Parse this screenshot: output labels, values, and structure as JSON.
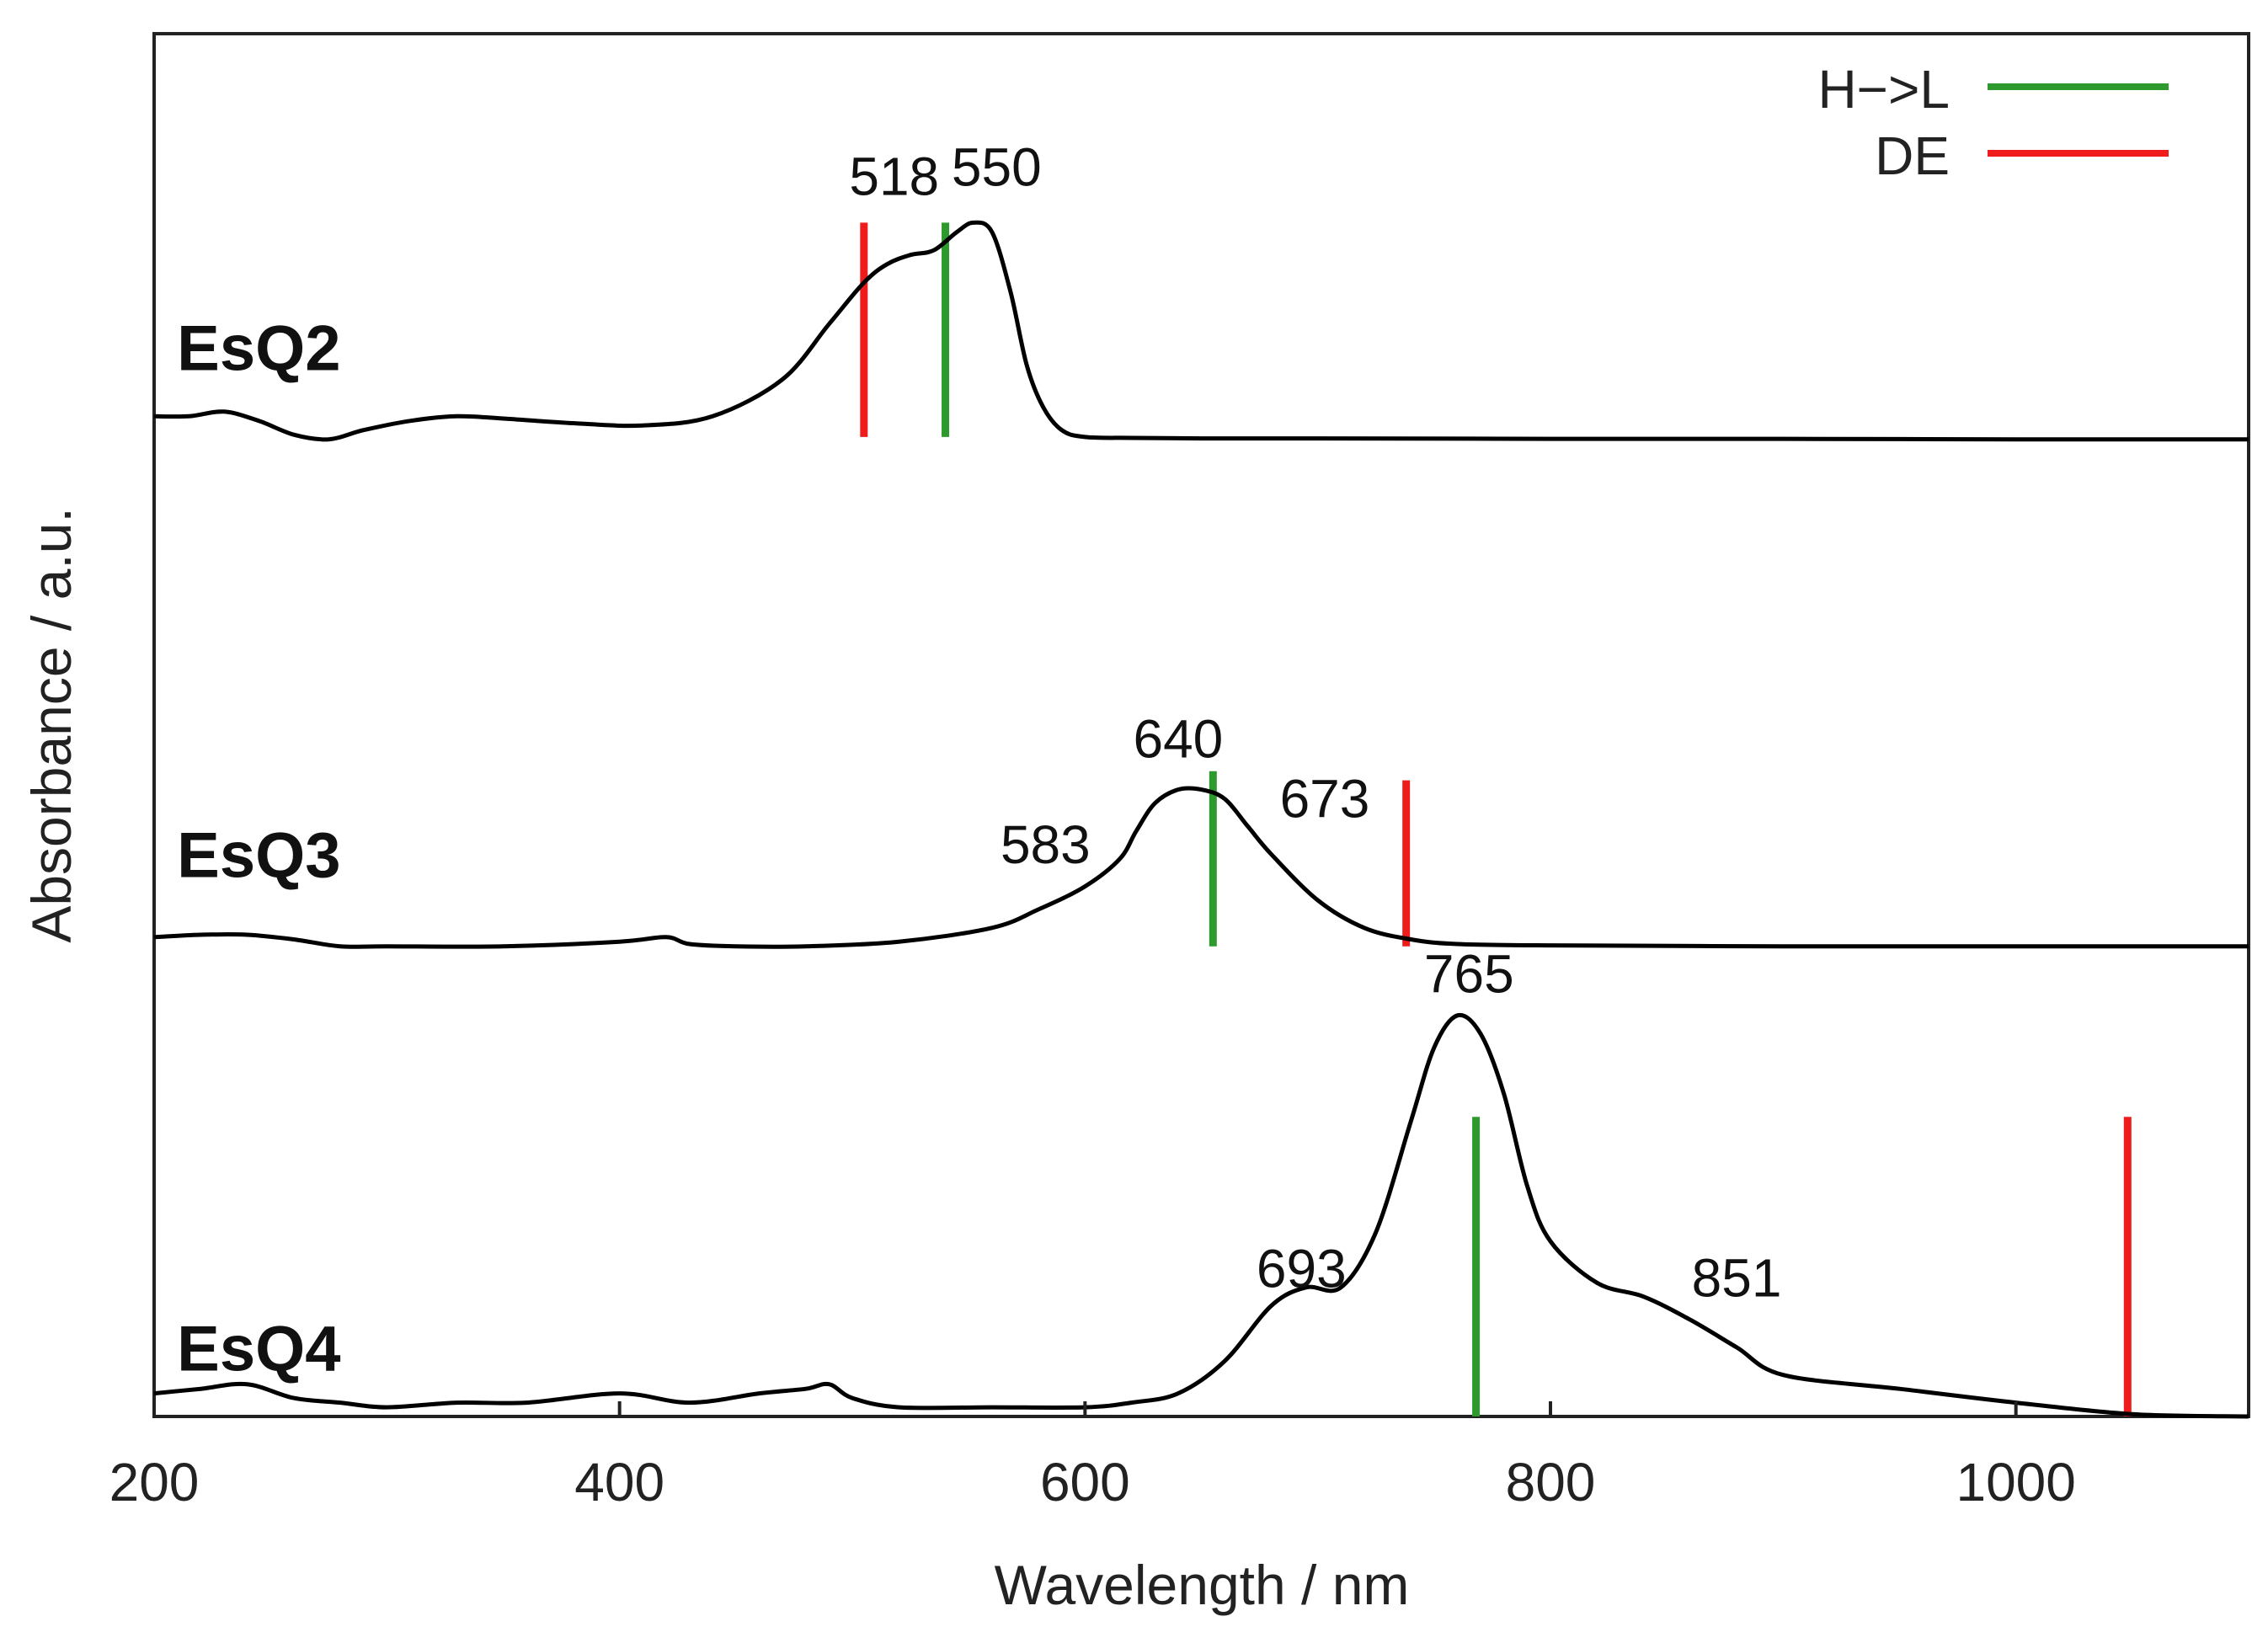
{
  "chart_data": {
    "type": "line",
    "title": "",
    "xlabel": "Wavelength / nm",
    "ylabel": "Absorbance / a.u.",
    "xlim": [
      200,
      1100
    ],
    "ylim": [
      0,
      3.0
    ],
    "xticks": [
      200,
      400,
      600,
      800,
      1000
    ],
    "legend": {
      "placement": "top-right",
      "entries": [
        {
          "label": "H−>L",
          "color": "#2e9a2e"
        },
        {
          "label": "DE",
          "color": "#ee1c1c"
        }
      ]
    },
    "series": [
      {
        "name": "EsQ2",
        "color": "#000000",
        "x": [
          200,
          215,
          230,
          245,
          260,
          275,
          290,
          310,
          330,
          350,
          380,
          410,
          440,
          470,
          490,
          505,
          515,
          525,
          535,
          545,
          552,
          560,
          568,
          575,
          582,
          590,
          600,
          620,
          650,
          700,
          800,
          900,
          1000,
          1100
        ],
        "y": [
          2.17,
          2.17,
          2.18,
          2.16,
          2.13,
          2.12,
          2.14,
          2.16,
          2.17,
          2.165,
          2.155,
          2.15,
          2.17,
          2.25,
          2.37,
          2.46,
          2.5,
          2.52,
          2.53,
          2.57,
          2.59,
          2.57,
          2.44,
          2.28,
          2.19,
          2.14,
          2.125,
          2.123,
          2.122,
          2.122,
          2.121,
          2.121,
          2.12,
          2.12
        ],
        "peaks": [
          518,
          550
        ],
        "transitions": {
          "H->L": 540,
          "DE": 505
        }
      },
      {
        "name": "EsQ3",
        "color": "#000000",
        "x": [
          200,
          220,
          240,
          260,
          280,
          300,
          350,
          400,
          420,
          430,
          450,
          480,
          520,
          560,
          580,
          600,
          615,
          622,
          630,
          640,
          650,
          660,
          670,
          680,
          700,
          720,
          740,
          760,
          800,
          900,
          1000,
          1100
        ],
        "y": [
          1.04,
          1.045,
          1.045,
          1.035,
          1.02,
          1.02,
          1.02,
          1.03,
          1.04,
          1.025,
          1.02,
          1.02,
          1.03,
          1.06,
          1.1,
          1.15,
          1.21,
          1.27,
          1.33,
          1.36,
          1.36,
          1.34,
          1.28,
          1.22,
          1.12,
          1.06,
          1.035,
          1.025,
          1.022,
          1.02,
          1.02,
          1.02
        ],
        "peaks": [
          583,
          640,
          673
        ],
        "transitions": {
          "H->L": 655,
          "DE": 738
        }
      },
      {
        "name": "EsQ4",
        "color": "#000000",
        "x": [
          200,
          220,
          240,
          260,
          280,
          300,
          330,
          360,
          400,
          430,
          460,
          480,
          490,
          500,
          520,
          560,
          600,
          620,
          640,
          660,
          680,
          695,
          710,
          725,
          740,
          750,
          760,
          770,
          780,
          790,
          800,
          820,
          840,
          860,
          880,
          900,
          950,
          1000,
          1050,
          1100
        ],
        "y": [
          0.05,
          0.06,
          0.07,
          0.04,
          0.03,
          0.02,
          0.03,
          0.03,
          0.05,
          0.03,
          0.05,
          0.06,
          0.07,
          0.04,
          0.02,
          0.02,
          0.02,
          0.03,
          0.05,
          0.12,
          0.24,
          0.28,
          0.28,
          0.4,
          0.64,
          0.8,
          0.87,
          0.83,
          0.7,
          0.5,
          0.38,
          0.29,
          0.26,
          0.21,
          0.15,
          0.09,
          0.06,
          0.03,
          0.005,
          0.0
        ],
        "peaks": [
          693,
          765,
          851
        ],
        "transitions": {
          "H->L": 768,
          "DE": 1048
        }
      }
    ],
    "annotations": [
      {
        "text": "518",
        "x": 518,
        "y": 2.65
      },
      {
        "text": "550",
        "x": 562,
        "y": 2.67
      },
      {
        "text": "640",
        "x": 640,
        "y": 1.43
      },
      {
        "text": "583",
        "x": 583,
        "y": 1.2
      },
      {
        "text": "673",
        "x": 703,
        "y": 1.3
      },
      {
        "text": "765",
        "x": 765,
        "y": 0.92
      },
      {
        "text": "693",
        "x": 693,
        "y": 0.28
      },
      {
        "text": "851",
        "x": 880,
        "y": 0.26
      }
    ],
    "series_labels": [
      {
        "text": "EsQ2",
        "x": 245,
        "y": 2.27
      },
      {
        "text": "EsQ3",
        "x": 245,
        "y": 1.17
      },
      {
        "text": "EsQ4",
        "x": 245,
        "y": 0.1
      }
    ],
    "transition_lines": [
      {
        "series": "EsQ2",
        "kind": "DE",
        "x": 505,
        "y0": 2.125,
        "y1": 2.59
      },
      {
        "series": "EsQ2",
        "kind": "H->L",
        "x": 540,
        "y0": 2.125,
        "y1": 2.59
      },
      {
        "series": "EsQ3",
        "kind": "H->L",
        "x": 655,
        "y0": 1.02,
        "y1": 1.4
      },
      {
        "series": "EsQ3",
        "kind": "DE",
        "x": 738,
        "y0": 1.02,
        "y1": 1.38
      },
      {
        "series": "EsQ4",
        "kind": "H->L",
        "x": 768,
        "y0": 0.0,
        "y1": 0.65
      },
      {
        "series": "EsQ4",
        "kind": "DE",
        "x": 1048,
        "y0": 0.0,
        "y1": 0.65
      }
    ]
  }
}
